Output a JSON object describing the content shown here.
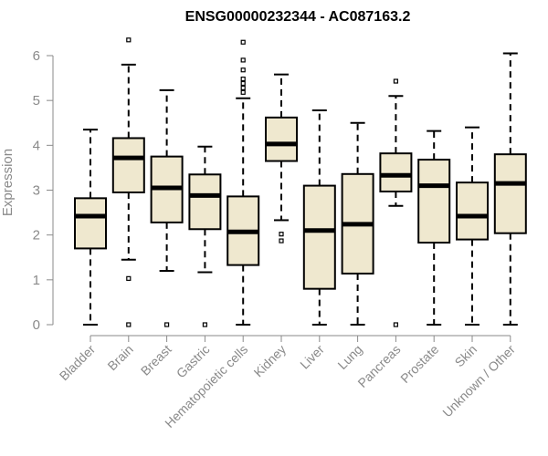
{
  "chart_data": {
    "type": "boxplot",
    "title": "ENSG00000232344 - AC087163.2",
    "xlabel": "",
    "ylabel": "Expression",
    "ylim": [
      0,
      6.3
    ],
    "yticks": [
      0,
      1,
      2,
      3,
      4,
      5,
      6
    ],
    "categories": [
      "Bladder",
      "Brain",
      "Breast",
      "Gastric",
      "Hematopoietic cells",
      "Kidney",
      "Liver",
      "Lung",
      "Pancreas",
      "Prostate",
      "Skin",
      "Unknown / Other"
    ],
    "boxes": [
      {
        "name": "Bladder",
        "whisker_low": 0.0,
        "q1": 1.7,
        "median": 2.42,
        "q3": 2.82,
        "whisker_high": 4.35,
        "outliers": []
      },
      {
        "name": "Brain",
        "whisker_low": 1.45,
        "q1": 2.95,
        "median": 3.72,
        "q3": 4.16,
        "whisker_high": 5.8,
        "outliers": [
          6.35,
          1.03,
          0.0
        ]
      },
      {
        "name": "Breast",
        "whisker_low": 1.2,
        "q1": 2.28,
        "median": 3.05,
        "q3": 3.75,
        "whisker_high": 5.23,
        "outliers": [
          0.0
        ]
      },
      {
        "name": "Gastric",
        "whisker_low": 1.17,
        "q1": 2.13,
        "median": 2.88,
        "q3": 3.35,
        "whisker_high": 3.97,
        "outliers": [
          0.0
        ]
      },
      {
        "name": "Hematopoietic cells",
        "whisker_low": 0.0,
        "q1": 1.33,
        "median": 2.07,
        "q3": 2.86,
        "whisker_high": 5.05,
        "outliers": [
          6.3,
          5.9,
          5.68,
          5.48,
          5.38,
          5.28,
          5.18
        ]
      },
      {
        "name": "Kidney",
        "whisker_low": 2.33,
        "q1": 3.65,
        "median": 4.03,
        "q3": 4.62,
        "whisker_high": 5.58,
        "outliers": [
          2.02,
          1.87
        ]
      },
      {
        "name": "Liver",
        "whisker_low": 0.0,
        "q1": 0.8,
        "median": 2.1,
        "q3": 3.1,
        "whisker_high": 4.78,
        "outliers": []
      },
      {
        "name": "Lung",
        "whisker_low": 0.0,
        "q1": 1.14,
        "median": 2.24,
        "q3": 3.36,
        "whisker_high": 4.5,
        "outliers": []
      },
      {
        "name": "Pancreas",
        "whisker_low": 2.65,
        "q1": 2.97,
        "median": 3.33,
        "q3": 3.82,
        "whisker_high": 5.1,
        "outliers": [
          5.43,
          0.0
        ]
      },
      {
        "name": "Prostate",
        "whisker_low": 0.0,
        "q1": 1.83,
        "median": 3.1,
        "q3": 3.68,
        "whisker_high": 4.32,
        "outliers": []
      },
      {
        "name": "Skin",
        "whisker_low": 0.0,
        "q1": 1.9,
        "median": 2.42,
        "q3": 3.17,
        "whisker_high": 4.4,
        "outliers": []
      },
      {
        "name": "Unknown / Other",
        "whisker_low": 0.0,
        "q1": 2.04,
        "median": 3.15,
        "q3": 3.8,
        "whisker_high": 6.05,
        "outliers": []
      }
    ],
    "colors": {
      "box_fill": "#efe8cf",
      "stroke": "#000000",
      "axis_text": "#8a8a8a",
      "axis_line": "#8a8a8a"
    },
    "grid": false,
    "legend": "none"
  }
}
